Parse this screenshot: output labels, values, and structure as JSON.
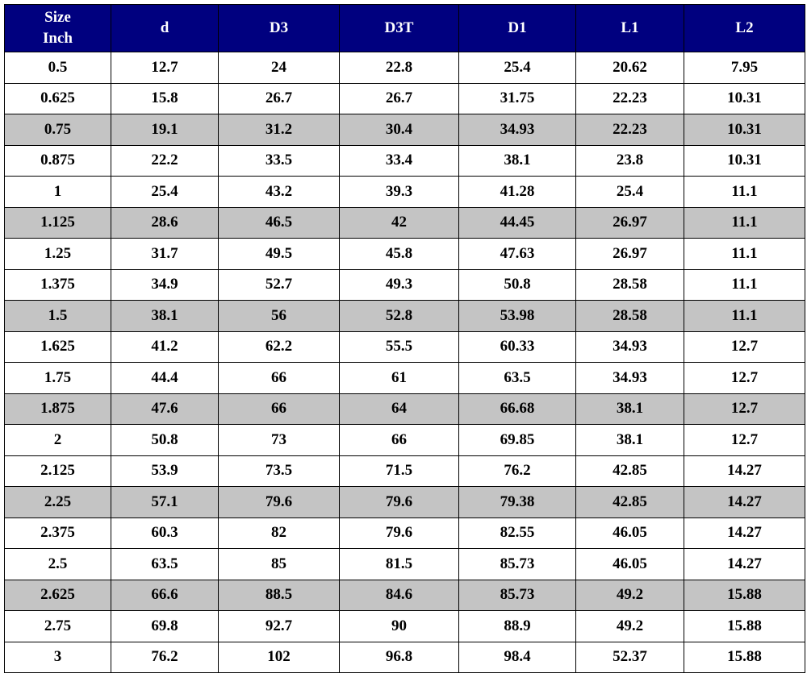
{
  "table": {
    "header": [
      "Size\nInch",
      "d",
      "D3",
      "D3T",
      "D1",
      "L1",
      "L2"
    ],
    "rows": [
      [
        "0.5",
        "12.7",
        "24",
        "22.8",
        "25.4",
        "20.62",
        "7.95"
      ],
      [
        "0.625",
        "15.8",
        "26.7",
        "26.7",
        "31.75",
        "22.23",
        "10.31"
      ],
      [
        "0.75",
        "19.1",
        "31.2",
        "30.4",
        "34.93",
        "22.23",
        "10.31"
      ],
      [
        "0.875",
        "22.2",
        "33.5",
        "33.4",
        "38.1",
        "23.8",
        "10.31"
      ],
      [
        "1",
        "25.4",
        "43.2",
        "39.3",
        "41.28",
        "25.4",
        "11.1"
      ],
      [
        "1.125",
        "28.6",
        "46.5",
        "42",
        "44.45",
        "26.97",
        "11.1"
      ],
      [
        "1.25",
        "31.7",
        "49.5",
        "45.8",
        "47.63",
        "26.97",
        "11.1"
      ],
      [
        "1.375",
        "34.9",
        "52.7",
        "49.3",
        "50.8",
        "28.58",
        "11.1"
      ],
      [
        "1.5",
        "38.1",
        "56",
        "52.8",
        "53.98",
        "28.58",
        "11.1"
      ],
      [
        "1.625",
        "41.2",
        "62.2",
        "55.5",
        "60.33",
        "34.93",
        "12.7"
      ],
      [
        "1.75",
        "44.4",
        "66",
        "61",
        "63.5",
        "34.93",
        "12.7"
      ],
      [
        "1.875",
        "47.6",
        "66",
        "64",
        "66.68",
        "38.1",
        "12.7"
      ],
      [
        "2",
        "50.8",
        "73",
        "66",
        "69.85",
        "38.1",
        "12.7"
      ],
      [
        "2.125",
        "53.9",
        "73.5",
        "71.5",
        "76.2",
        "42.85",
        "14.27"
      ],
      [
        "2.25",
        "57.1",
        "79.6",
        "79.6",
        "79.38",
        "42.85",
        "14.27"
      ],
      [
        "2.375",
        "60.3",
        "82",
        "79.6",
        "82.55",
        "46.05",
        "14.27"
      ],
      [
        "2.5",
        "63.5",
        "85",
        "81.5",
        "85.73",
        "46.05",
        "14.27"
      ],
      [
        "2.625",
        "66.6",
        "88.5",
        "84.6",
        "85.73",
        "49.2",
        "15.88"
      ],
      [
        "2.75",
        "69.8",
        "92.7",
        "90",
        "88.9",
        "49.2",
        "15.88"
      ],
      [
        "3",
        "76.2",
        "102",
        "96.8",
        "98.4",
        "52.37",
        "15.88"
      ]
    ]
  }
}
